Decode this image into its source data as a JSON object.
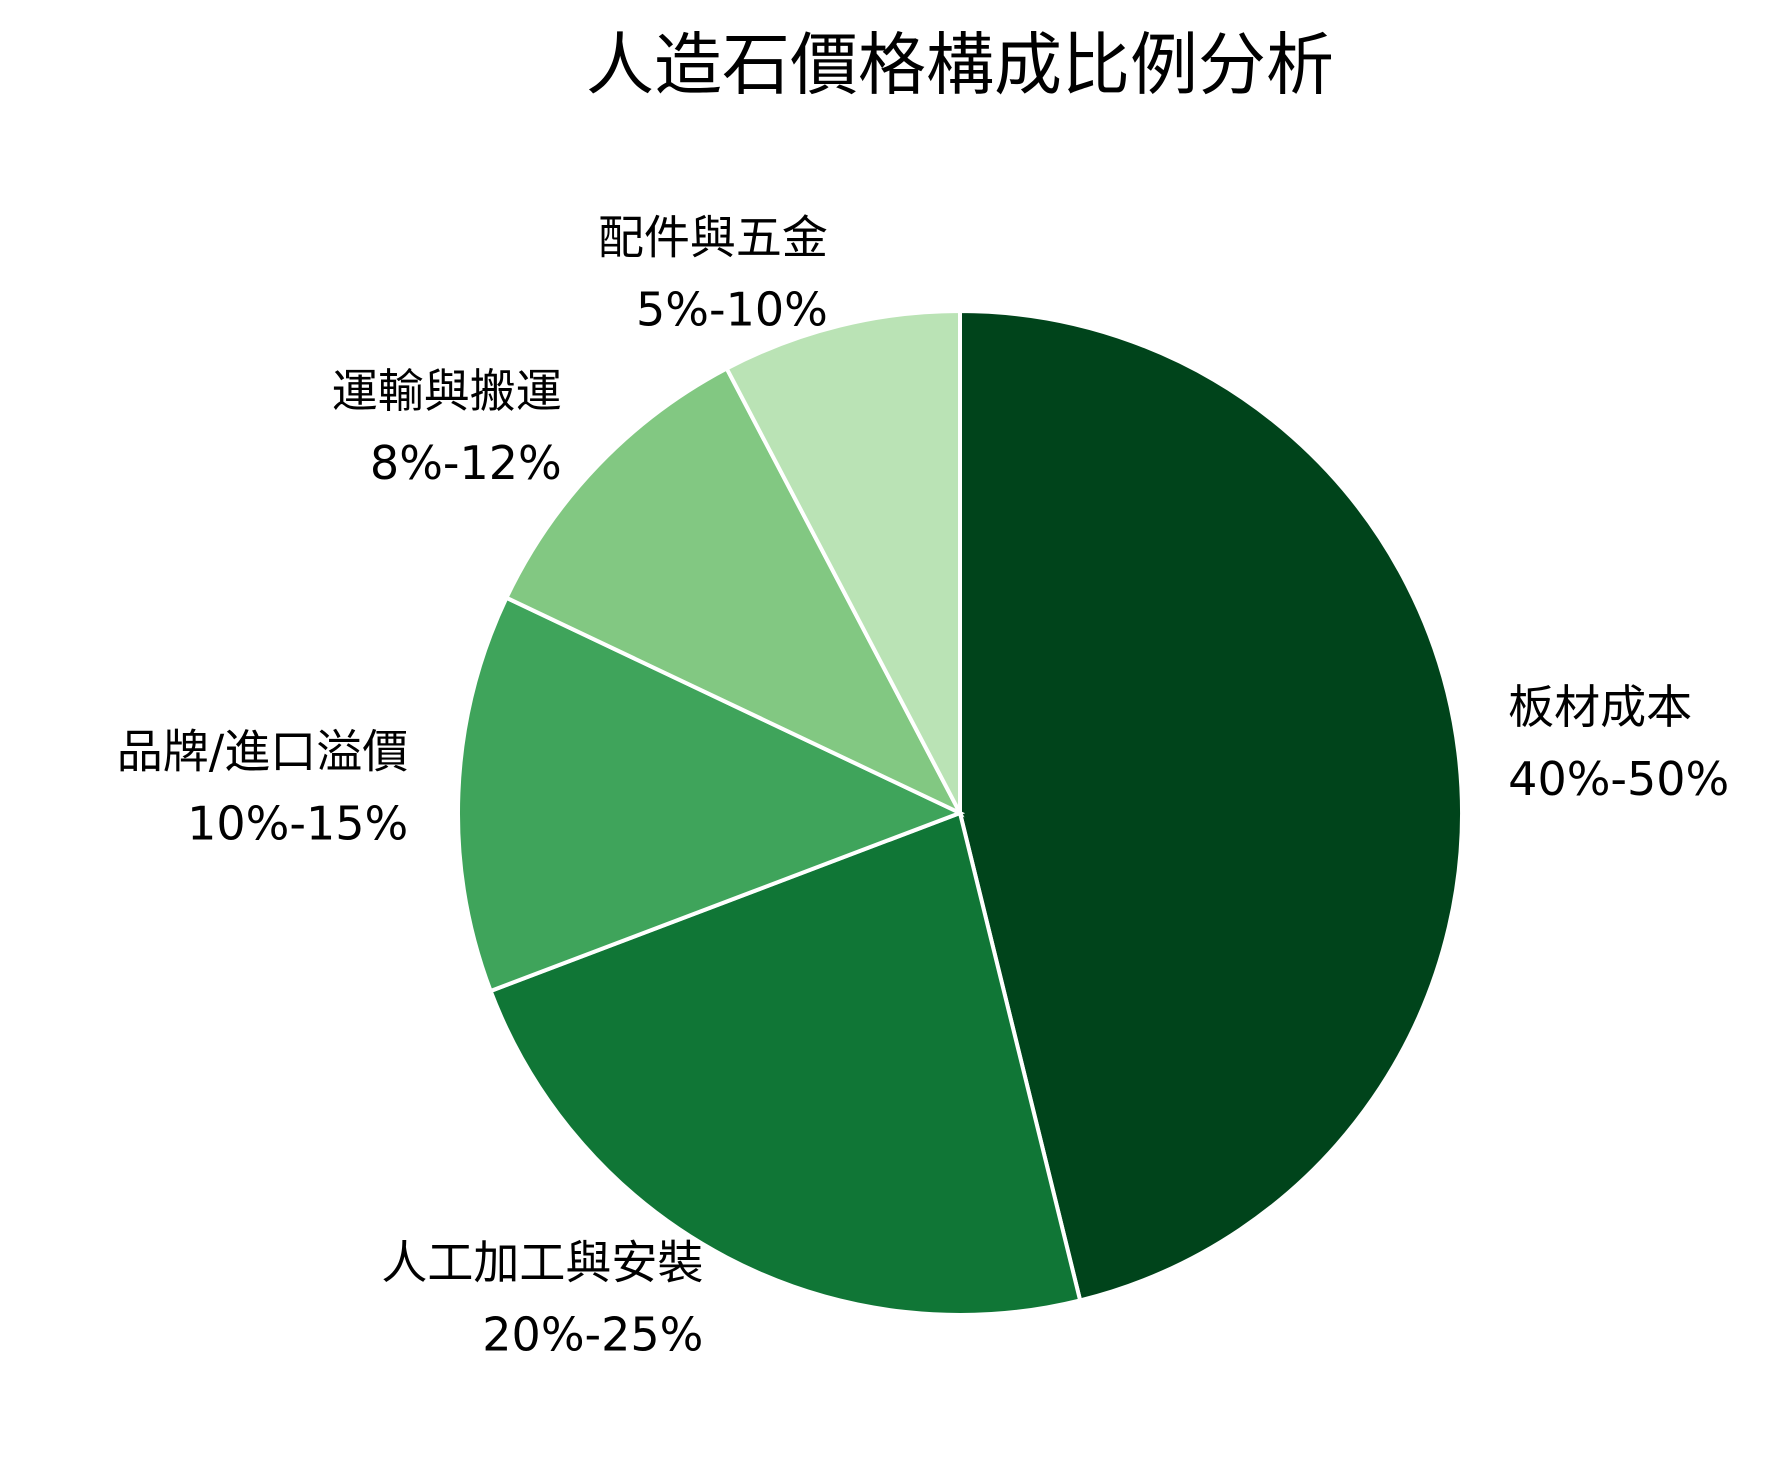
{
  "chart_data": {
    "type": "pie",
    "title": "人造石價格構成比例分析",
    "categories": [
      "板材成本",
      "人工加工與安裝",
      "品牌/進口溢價",
      "運輸與搬運",
      "配件與五金"
    ],
    "values": [
      45,
      22.5,
      12.5,
      10,
      7.5
    ],
    "value_labels": [
      "40%-50%",
      "20%-25%",
      "10%-15%",
      "8%-12%",
      "5%-10%"
    ],
    "colors": [
      "#00441b",
      "#107636",
      "#3fa45b",
      "#82c882",
      "#bae3b5"
    ]
  }
}
